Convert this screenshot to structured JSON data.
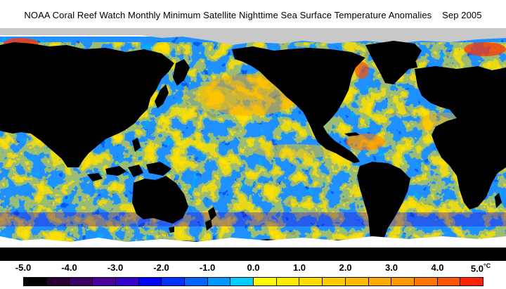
{
  "title": "NOAA Coral Reef Watch Monthly Minimum Satellite Nighttime Sea Surface Temperature Anomalies    Sep 2005",
  "legend": {
    "ticks": [
      "-5.0",
      "-4.0",
      "-3.0",
      "-2.0",
      "-1.0",
      "0.0",
      "1.0",
      "2.0",
      "3.0",
      "4.0",
      "5.0"
    ],
    "unit": "°C",
    "colors": [
      "#000000",
      "#2a0033",
      "#3a0066",
      "#4a0099",
      "#3300cc",
      "#0000ff",
      "#0033ff",
      "#0066ff",
      "#0099ff",
      "#00ccff",
      "#ffff00",
      "#ffee00",
      "#ffdd00",
      "#ffcc00",
      "#ffbb00",
      "#ffaa00",
      "#ff9900",
      "#ff7700",
      "#ff5500",
      "#ff2200"
    ]
  },
  "map": {
    "colors": {
      "land": "#000000",
      "ice": "#c8c8c8",
      "no_data": "#ffffff",
      "ocean_base": "#1e90ff"
    }
  }
}
